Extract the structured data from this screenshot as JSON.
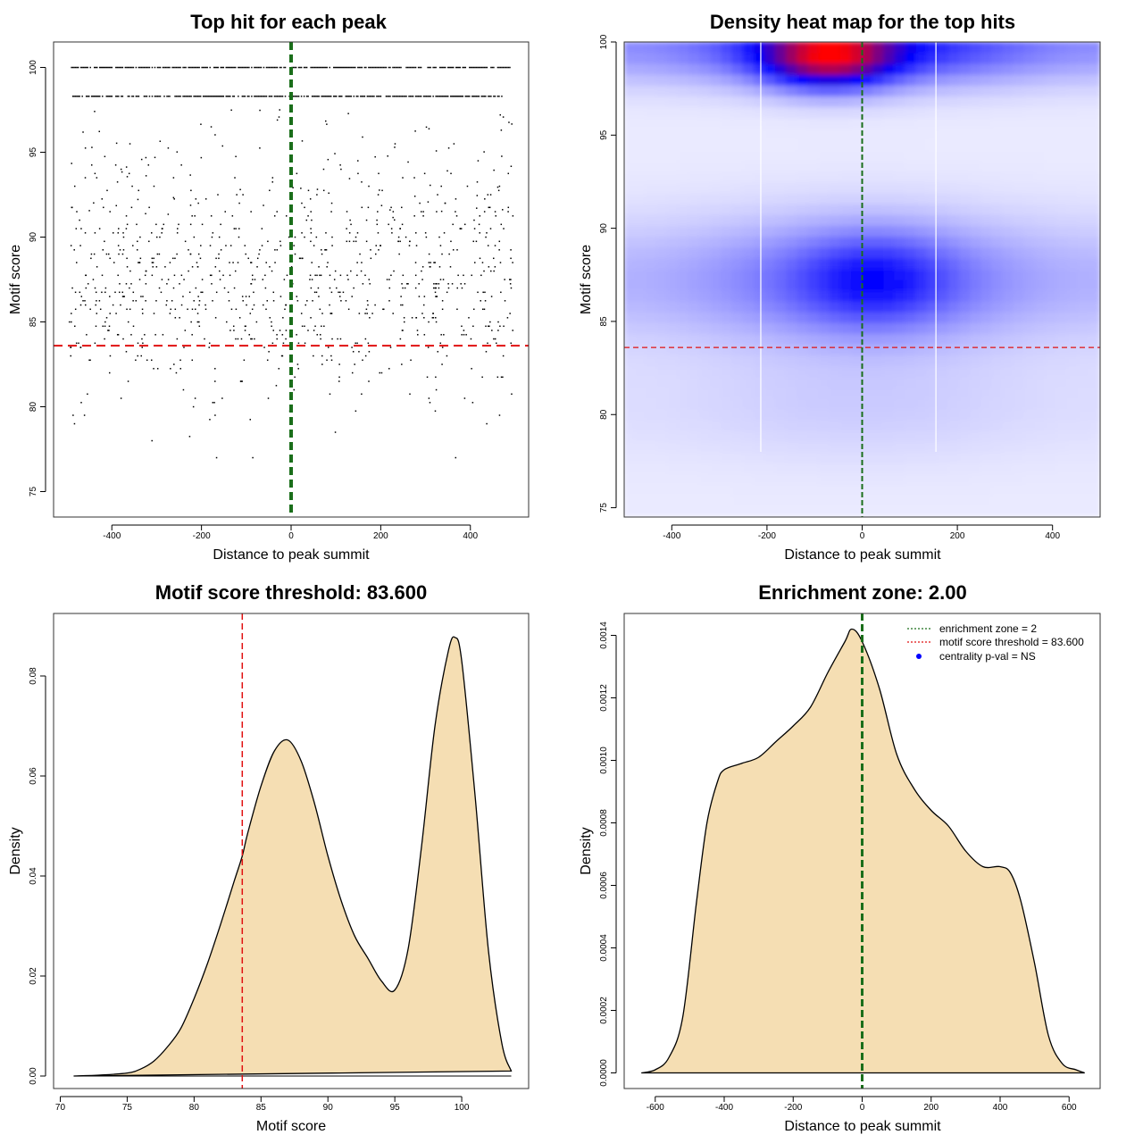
{
  "chart_data": [
    {
      "type": "scatter",
      "title": "Top hit for each peak",
      "xlabel": "Distance to peak summit",
      "ylabel": "Motif score",
      "xlim": [
        -530,
        530
      ],
      "ylim": [
        73.5,
        101.5
      ],
      "xticks": [
        -400,
        -200,
        0,
        200,
        400
      ],
      "yticks": [
        75,
        80,
        85,
        90,
        95,
        100
      ],
      "xtick_labels": [
        "-400",
        "-200",
        "0",
        "200",
        "400"
      ],
      "ytick_labels": [
        "75",
        "80",
        "85",
        "90",
        "95",
        "100"
      ],
      "threshold": 83.6,
      "enrichment_center": 0,
      "bands": [
        {
          "y": 100.0,
          "x_from": -490,
          "x_to": 490
        },
        {
          "y": 98.3,
          "x_from": -490,
          "x_to": 470
        }
      ],
      "cluster": {
        "center": 87.0,
        "spread": 3.5,
        "x_from": -495,
        "x_to": 495
      },
      "colors": {
        "points": "#000000",
        "threshold": "#e01010",
        "center": "#1a6e1a"
      }
    },
    {
      "type": "heatmap",
      "title": "Density heat map for the top hits",
      "xlabel": "Distance to peak summit",
      "ylabel": "Motif score",
      "xlim": [
        -500,
        500
      ],
      "ylim": [
        74.5,
        100
      ],
      "xticks": [
        -400,
        -200,
        0,
        200,
        400
      ],
      "yticks": [
        75,
        80,
        85,
        90,
        95,
        100
      ],
      "xtick_labels": [
        "-400",
        "-200",
        "0",
        "200",
        "400"
      ],
      "ytick_labels": [
        "75",
        "80",
        "85",
        "90",
        "95",
        "100"
      ],
      "threshold": 83.6,
      "enrichment_center": 0,
      "white_lines": [
        -213,
        155
      ],
      "hotspots": [
        {
          "x": -70,
          "y": 99.2,
          "weight": 1.0,
          "note": "red peak"
        },
        {
          "x": 30,
          "y": 87.2,
          "weight": 0.62,
          "note": "blue core"
        }
      ],
      "colors": {
        "low": "#ffffff",
        "mid": "#0000ff",
        "high": "#ff0000",
        "threshold": "#e01010",
        "center": "#1a6e1a"
      }
    },
    {
      "type": "area",
      "title": "Motif score threshold: 83.600",
      "xlabel": "Motif score",
      "ylabel": "Density",
      "xlim": [
        69.5,
        105
      ],
      "ylim": [
        -0.0025,
        0.0925
      ],
      "xticks": [
        70,
        75,
        80,
        85,
        90,
        95,
        100
      ],
      "yticks": [
        0,
        0.02,
        0.04,
        0.06,
        0.08
      ],
      "xtick_labels": [
        "70",
        "75",
        "80",
        "85",
        "90",
        "95",
        "100"
      ],
      "ytick_labels": [
        "0.00",
        "0.02",
        "0.04",
        "0.06",
        "0.08"
      ],
      "threshold": 83.6,
      "x": [
        71,
        73,
        75,
        76,
        77,
        78,
        79,
        80,
        81,
        82,
        83,
        83.6,
        84,
        85,
        86,
        87,
        88,
        89,
        90,
        91,
        92,
        93,
        94,
        95,
        96,
        97,
        98,
        99,
        99.5,
        100,
        101,
        102,
        103,
        103.7
      ],
      "y": [
        0,
        0.0002,
        0.0006,
        0.0014,
        0.003,
        0.0058,
        0.0095,
        0.0155,
        0.0225,
        0.0305,
        0.039,
        0.044,
        0.0485,
        0.058,
        0.065,
        0.0672,
        0.063,
        0.0545,
        0.044,
        0.035,
        0.028,
        0.0235,
        0.019,
        0.0172,
        0.0255,
        0.046,
        0.07,
        0.085,
        0.0877,
        0.083,
        0.056,
        0.025,
        0.0065,
        0.001
      ],
      "colors": {
        "fill": "#f5deb3",
        "line": "#000000",
        "threshold": "#e01010"
      }
    },
    {
      "type": "area",
      "title": "Enrichment zone: 2.00",
      "xlabel": "Distance to peak summit",
      "ylabel": "Density",
      "xlim": [
        -690,
        690
      ],
      "ylim": [
        -5e-05,
        0.00147
      ],
      "xticks": [
        -600,
        -400,
        -200,
        0,
        200,
        400,
        600
      ],
      "yticks": [
        0,
        0.0002,
        0.0004,
        0.0006,
        0.0008,
        0.001,
        0.0012,
        0.0014
      ],
      "xtick_labels": [
        "-600",
        "-400",
        "-200",
        "0",
        "200",
        "400",
        "600"
      ],
      "ytick_labels": [
        "0.0000",
        "0.0002",
        "0.0004",
        "0.0006",
        "0.0008",
        "0.0010",
        "0.0012",
        "0.0014"
      ],
      "enrichment_center": 0,
      "x": [
        -640,
        -600,
        -560,
        -520,
        -480,
        -450,
        -420,
        -400,
        -350,
        -300,
        -250,
        -200,
        -150,
        -100,
        -50,
        -30,
        0,
        50,
        100,
        150,
        200,
        250,
        300,
        350,
        400,
        430,
        460,
        500,
        540,
        580,
        620,
        645
      ],
      "y": [
        0,
        1e-05,
        5e-05,
        0.00018,
        0.00055,
        0.0008,
        0.00093,
        0.00097,
        0.00099,
        0.00101,
        0.00106,
        0.00111,
        0.00117,
        0.00128,
        0.00138,
        0.00142,
        0.00138,
        0.00123,
        0.00102,
        0.00091,
        0.00084,
        0.00079,
        0.00071,
        0.00066,
        0.00066,
        0.00064,
        0.00055,
        0.00035,
        0.00012,
        3e-05,
        1e-05,
        0
      ],
      "legend": [
        {
          "label": "enrichment zone = 2",
          "style": "dotted-line",
          "color": "#1a6e1a"
        },
        {
          "label": "motif score threshold = 83.600",
          "style": "dotted-line",
          "color": "#e01010"
        },
        {
          "label": "centrality p-val = NS",
          "style": "dot",
          "color": "#0000ff"
        }
      ],
      "legend_position": "top-right",
      "colors": {
        "fill": "#f5deb3",
        "line": "#000000",
        "center": "#1a6e1a"
      }
    }
  ]
}
